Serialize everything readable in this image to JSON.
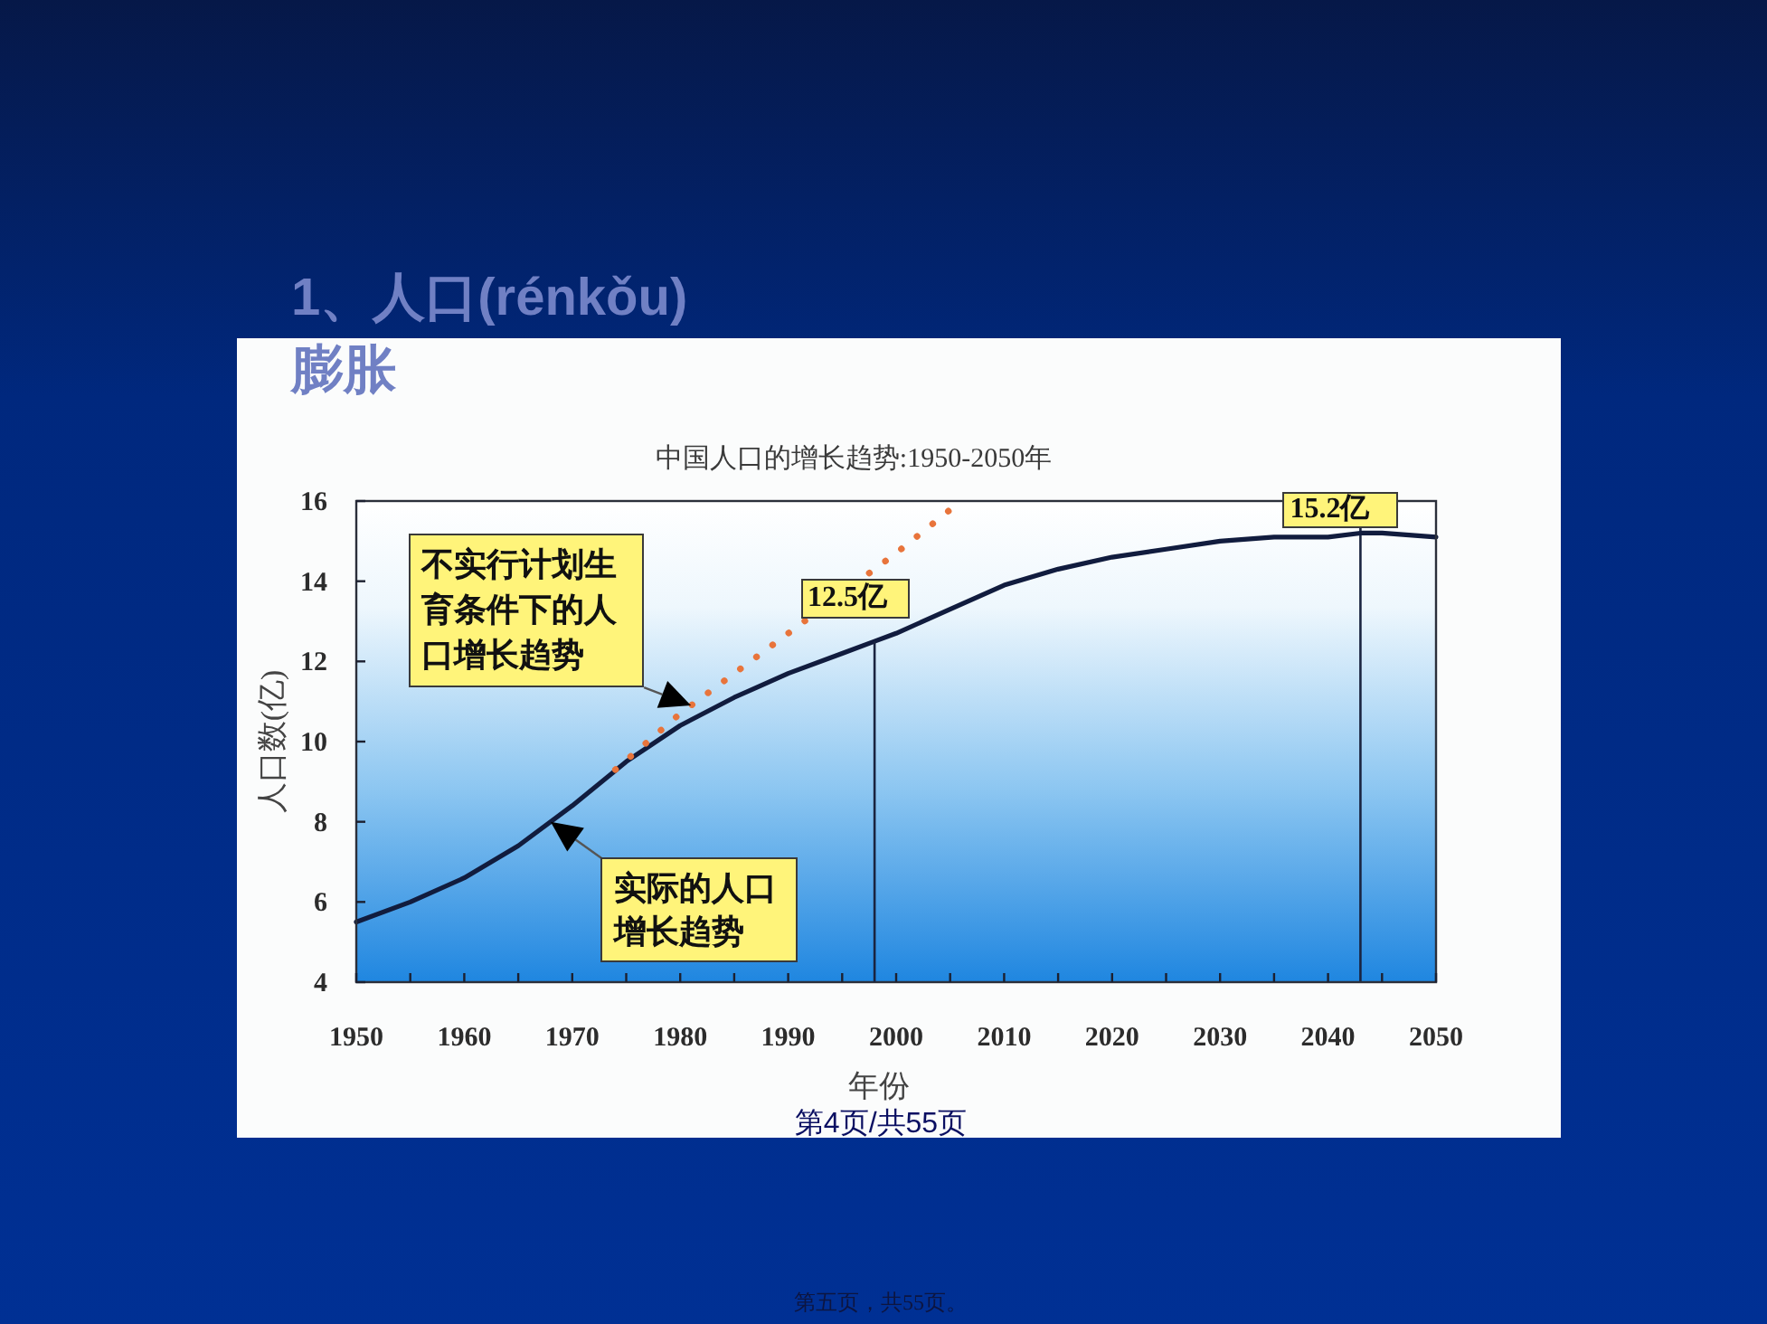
{
  "chart_data": {
    "type": "line",
    "title": "1、人口(rénkǒu)膨胀",
    "subtitle": "中国人口的增长趋势:1950-2050年",
    "xlabel": "年份",
    "ylabel": "人口数(亿)",
    "xlim": [
      1950,
      2050
    ],
    "ylim": [
      4,
      16
    ],
    "xticks": [
      1950,
      {
        "value": 1955,
        "label": null
      },
      1960,
      {
        "value": 1965,
        "label": null
      },
      1970,
      {
        "value": 1975,
        "label": null
      },
      1980,
      {
        "value": 1985,
        "label": null
      },
      1990,
      {
        "value": 1995,
        "label": null
      },
      2000,
      {
        "value": 2005,
        "label": null
      },
      2010,
      {
        "value": 2015,
        "label": null
      },
      2020,
      {
        "value": 2025,
        "label": null
      },
      2030,
      {
        "value": 2035,
        "label": null
      },
      2040,
      {
        "value": 2045,
        "label": null
      },
      2050
    ],
    "yticks": [
      4,
      6,
      8,
      10,
      12,
      14,
      16
    ],
    "series": [
      {
        "color": "#111c3e",
        "line_style": "solid",
        "x": [
          1950,
          1955,
          1960,
          1965,
          1970,
          1975,
          1980,
          1985,
          1990,
          1995,
          1998,
          2000,
          2005,
          2010,
          2015,
          2020,
          2025,
          2030,
          2035,
          2040,
          2043,
          2045,
          2050
        ],
        "values": [
          5.5,
          6.0,
          6.6,
          7.4,
          8.4,
          9.5,
          10.4,
          11.1,
          11.7,
          12.2,
          12.5,
          12.7,
          13.3,
          13.9,
          14.3,
          14.6,
          14.8,
          15.0,
          15.1,
          15.1,
          15.2,
          15.2,
          15.1
        ]
      },
      {
        "color": "#e8743b",
        "line_style": "dotted",
        "x": [
          1974,
          1980,
          1985,
          1990,
          2000,
          2006
        ],
        "values": [
          9.3,
          10.7,
          11.7,
          12.7,
          14.7,
          16.0
        ]
      }
    ],
    "ref_lines": [
      {
        "axis": "x",
        "value": 2043,
        "color": "#1a2440"
      }
    ],
    "annotations": [
      {
        "text": "不实行计划生育条件下的人口增长趋势",
        "x": 1981,
        "y": 10.9
      },
      {
        "text": "实际的人口增长趋势",
        "x": 1968,
        "y": 8.0
      },
      {
        "text": "12.5亿",
        "x": 1998,
        "y": 12.5
      },
      {
        "text": "15.2亿",
        "x": 2043,
        "y": 15.2
      },
      "第4页/共55页",
      "第五页，共55页。"
    ]
  }
}
